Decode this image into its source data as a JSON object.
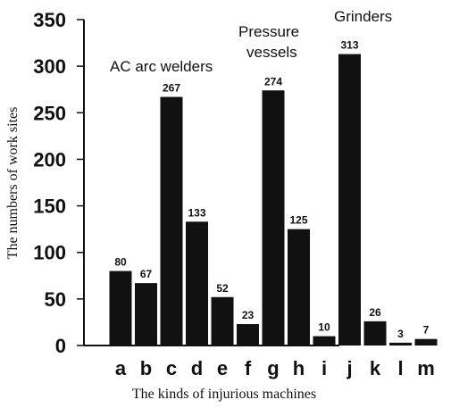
{
  "chart_data": {
    "type": "bar",
    "categories": [
      "a",
      "b",
      "c",
      "d",
      "e",
      "f",
      "g",
      "h",
      "i",
      "j",
      "k",
      "l",
      "m"
    ],
    "values": [
      80,
      67,
      267,
      133,
      52,
      23,
      274,
      125,
      10,
      313,
      26,
      3,
      7
    ],
    "xlabel": "The kinds of injurious machines",
    "ylabel": "The numbers of work sites",
    "ylim": [
      0,
      350
    ],
    "yticks": [
      0,
      50,
      100,
      150,
      200,
      250,
      300,
      350
    ],
    "grid": false,
    "annotations": [
      {
        "text": "AC arc welders",
        "category": "c"
      },
      {
        "text": "Pressure vessels",
        "category": "g"
      },
      {
        "text": "Grinders",
        "category": "j"
      }
    ],
    "colors": {
      "bar": "#111111"
    }
  }
}
